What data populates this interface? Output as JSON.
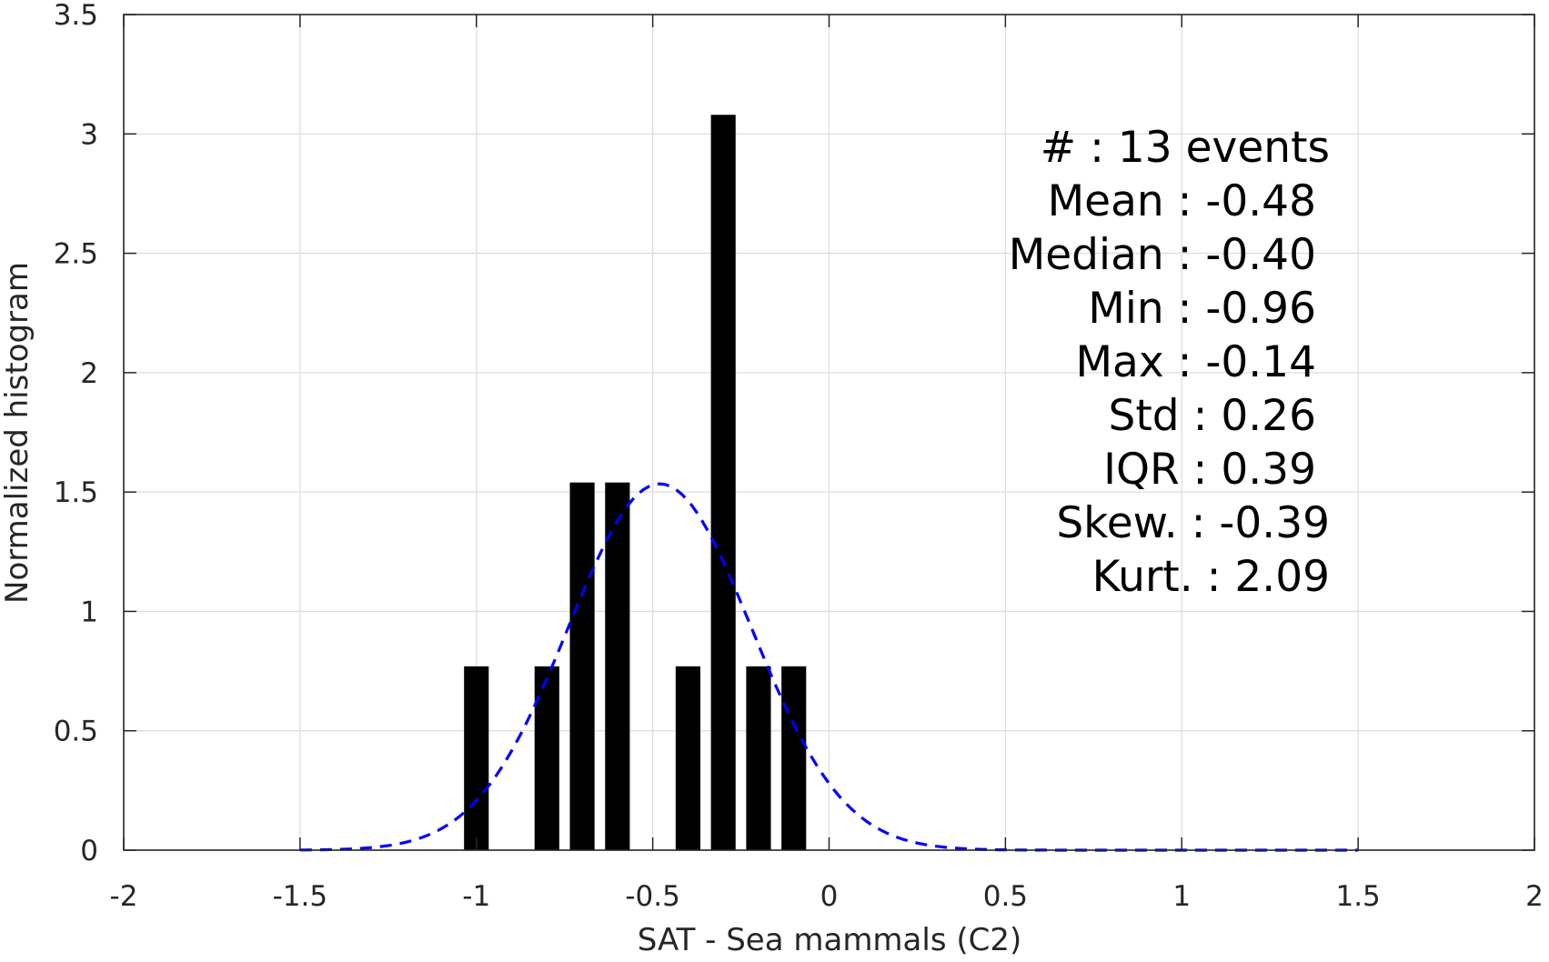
{
  "chart_data": {
    "type": "bar",
    "xlabel": "SAT - Sea mammals (C2)",
    "ylabel": "Normalized histogram",
    "xlim": [
      -2,
      2
    ],
    "ylim": [
      0,
      3.5
    ],
    "xticks": [
      "-2",
      "-1.5",
      "-1",
      "-0.5",
      "0",
      "0.5",
      "1",
      "1.5",
      "2"
    ],
    "yticks": [
      "0",
      "0.5",
      "1",
      "1.5",
      "2",
      "2.5",
      "3",
      "3.5"
    ],
    "grid": true,
    "bars": {
      "color": "#000000",
      "bin_width": 0.07,
      "centers": [
        -1.0,
        -0.8,
        -0.7,
        -0.6,
        -0.4,
        -0.3,
        -0.2,
        -0.1
      ],
      "values": [
        0.77,
        0.77,
        1.54,
        1.54,
        0.77,
        3.08,
        0.77,
        0.77
      ]
    },
    "fit_curve": {
      "style": "dashed",
      "color": "#0000ff",
      "mean": -0.48,
      "std": 0.26,
      "x_range": [
        -1.5,
        1.5
      ]
    },
    "stats": [
      "#  : 13 events",
      "Mean : -0.48",
      "Median : -0.40",
      "Min : -0.96",
      "Max : -0.14",
      "Std : 0.26",
      "IQR : 0.39",
      "Skew. : -0.39",
      "Kurt. : 2.09"
    ]
  }
}
